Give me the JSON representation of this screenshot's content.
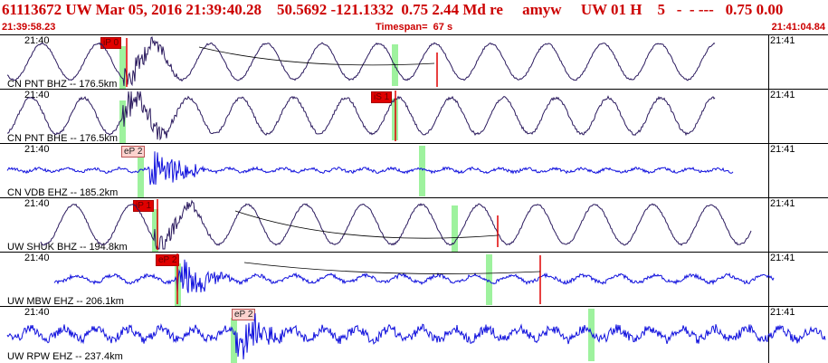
{
  "header": {
    "title": "61113672 UW Mar 05, 2016 21:39:40.28    50.5692 -121.1332  0.75 2.44 Md re     amyw     UW 01 H    5   -  - ---   0.75 0.00",
    "start_time": "21:39:58.23",
    "timespan": "Timespan=  67 s",
    "end_time": "21:41:04.84"
  },
  "colors": {
    "header_text": "#cc0000",
    "wave_dark": "#2b1a5e",
    "wave_blue": "#1010dd",
    "pick_red": "#e00000",
    "pick_pink": "#fcd3cf",
    "green_marker": "#9ef29e"
  },
  "panels": [
    {
      "station": "CN PNT BHZ -- 176.5km",
      "time_left": "21:40",
      "time_right": "21:41",
      "phase_label": "iP 0",
      "phase_style": "red",
      "wave": "dark"
    },
    {
      "station": "CN PNT BHE -- 176.5km",
      "time_left": "21:40",
      "time_right": "21:41",
      "phase_label": "iS 1",
      "phase_style": "red",
      "wave": "dark"
    },
    {
      "station": "CN VDB EHZ -- 185.2km",
      "time_left": "21:40",
      "time_right": "21:41",
      "phase_label": "eP 2",
      "phase_style": "pink",
      "wave": "blue"
    },
    {
      "station": "UW SHUK BHZ -- 194.8km",
      "time_left": "21:40",
      "time_right": "21:41",
      "phase_label": "iP 1",
      "phase_style": "red",
      "wave": "dark"
    },
    {
      "station": "UW MBW EHZ -- 206.1km",
      "time_left": "21:40",
      "time_right": "21:41",
      "phase_label": "eP 2",
      "phase_style": "red",
      "wave": "blue"
    },
    {
      "station": "UW RPW EHZ -- 237.4km",
      "time_left": "21:40",
      "time_right": "21:41",
      "phase_label": "eP 2",
      "phase_style": "pink",
      "wave": "blue"
    }
  ]
}
